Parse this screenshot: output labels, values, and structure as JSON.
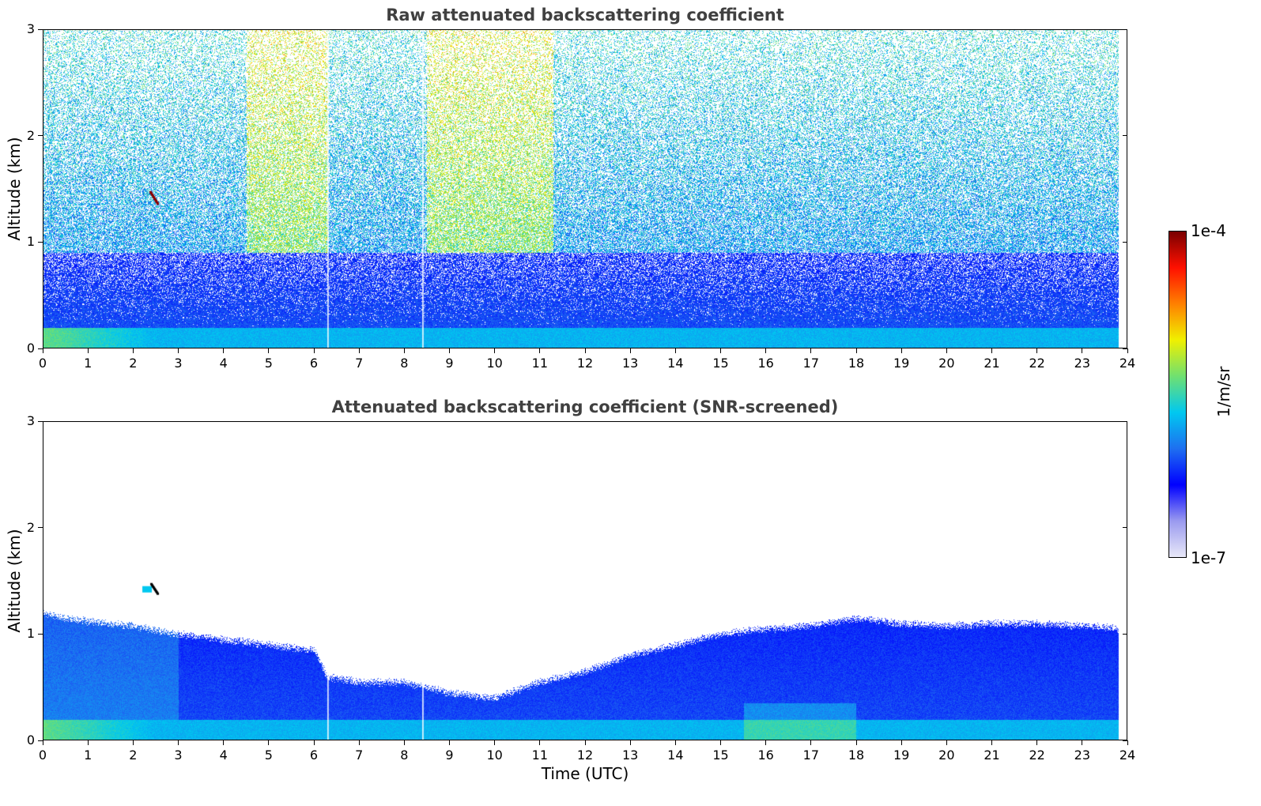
{
  "panels": [
    {
      "title": "Raw attenuated backscattering coefficient",
      "ylabel": "Altitude (km)",
      "xlabel": ""
    },
    {
      "title": "Attenuated backscattering coefficient (SNR-screened)",
      "ylabel": "Altitude (km)",
      "xlabel": "Time (UTC)"
    }
  ],
  "chart_data": [
    {
      "type": "heatmap",
      "title": "Raw attenuated backscattering coefficient",
      "xlabel": "",
      "ylabel": "Altitude (km)",
      "xlim": [
        0,
        24
      ],
      "ylim": [
        0,
        3
      ],
      "x_ticks": [
        "0",
        "1",
        "2",
        "3",
        "4",
        "5",
        "6",
        "7",
        "8",
        "9",
        "10",
        "11",
        "12",
        "13",
        "14",
        "15",
        "16",
        "17",
        "18",
        "19",
        "20",
        "21",
        "22",
        "23",
        "24"
      ],
      "y_ticks": [
        "0",
        "1",
        "2",
        "3"
      ],
      "data_extent_hours": [
        0,
        23.8
      ],
      "colorscale": "log",
      "value_range": [
        "1e-7",
        "1e-4"
      ],
      "features": {
        "surface_layer_top_km": 0.2,
        "boundary_layer_top_km": 0.9,
        "high_noise_periods_hours": [
          [
            4.5,
            6.3
          ],
          [
            8.5,
            11.3
          ]
        ],
        "data_gaps_hours": [
          6.3,
          8.4
        ],
        "aerosol_feature": {
          "time_hours": 2.45,
          "altitude_km": 1.42
        }
      }
    },
    {
      "type": "heatmap",
      "title": "Attenuated backscattering coefficient (SNR-screened)",
      "xlabel": "Time (UTC)",
      "ylabel": "Altitude (km)",
      "xlim": [
        0,
        24
      ],
      "ylim": [
        0,
        3
      ],
      "x_ticks": [
        "0",
        "1",
        "2",
        "3",
        "4",
        "5",
        "6",
        "7",
        "8",
        "9",
        "10",
        "11",
        "12",
        "13",
        "14",
        "15",
        "16",
        "17",
        "18",
        "19",
        "20",
        "21",
        "22",
        "23",
        "24"
      ],
      "y_ticks": [
        "0",
        "1",
        "2",
        "3"
      ],
      "data_extent_hours": [
        0,
        23.8
      ],
      "colorscale": "log",
      "value_range": [
        "1e-7",
        "1e-4"
      ],
      "screened_layer_top_km": [
        [
          0,
          1.2
        ],
        [
          0.5,
          1.15
        ],
        [
          1,
          1.12
        ],
        [
          2,
          1.08
        ],
        [
          3,
          1.0
        ],
        [
          4,
          0.95
        ],
        [
          5,
          0.9
        ],
        [
          6,
          0.85
        ],
        [
          6.3,
          0.6
        ],
        [
          7,
          0.55
        ],
        [
          8,
          0.55
        ],
        [
          9,
          0.45
        ],
        [
          10,
          0.4
        ],
        [
          11,
          0.55
        ],
        [
          12,
          0.65
        ],
        [
          13,
          0.8
        ],
        [
          14,
          0.9
        ],
        [
          15,
          1.0
        ],
        [
          16,
          1.05
        ],
        [
          17,
          1.08
        ],
        [
          18,
          1.15
        ],
        [
          19,
          1.1
        ],
        [
          20,
          1.08
        ],
        [
          21,
          1.1
        ],
        [
          22,
          1.1
        ],
        [
          23,
          1.08
        ],
        [
          23.8,
          1.05
        ]
      ],
      "data_gaps_hours": [
        6.3,
        8.4
      ],
      "aerosol_feature": {
        "time_hours": 2.45,
        "altitude_km": 1.42
      }
    }
  ],
  "colorbar": {
    "label": "1/m/sr",
    "max_label": "1e-4",
    "min_label": "1e-7",
    "colors": [
      "#e8e8f8",
      "#9a9aef",
      "#0000ff",
      "#1e6ff0",
      "#00c8f0",
      "#70e070",
      "#f0f000",
      "#ff8000",
      "#ff1000",
      "#7a0000"
    ]
  }
}
